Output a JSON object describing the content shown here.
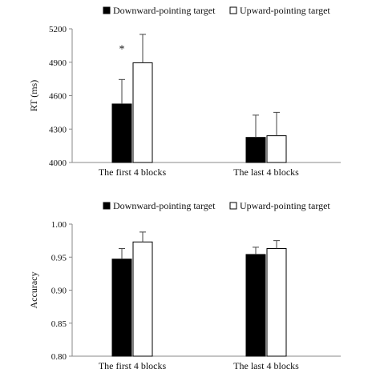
{
  "chart_data": [
    {
      "type": "bar",
      "categories": [
        "The first 4 blocks",
        "The last 4 blocks"
      ],
      "series": [
        {
          "name": "Downward-pointing target",
          "values": [
            4525,
            4225
          ],
          "errors": [
            220,
            200
          ],
          "color": "#000000"
        },
        {
          "name": "Upward-pointing target",
          "values": [
            4895,
            4240
          ],
          "errors": [
            255,
            210
          ],
          "color": "#ffffff"
        }
      ],
      "ylabel": "RT (ms)",
      "ylim": [
        4000,
        5200
      ],
      "yticks": [
        4000,
        4300,
        4600,
        4900,
        5200
      ],
      "ytick_labels": [
        "4000",
        "4300",
        "4600",
        "4900",
        "5200"
      ],
      "annotations": [
        {
          "text": "*",
          "category": 0
        }
      ],
      "legend": "top",
      "grid": false
    },
    {
      "type": "bar",
      "categories": [
        "The first 4 blocks",
        "The last 4 blocks"
      ],
      "series": [
        {
          "name": "Downward-pointing target",
          "values": [
            0.947,
            0.954
          ],
          "errors": [
            0.016,
            0.011
          ],
          "color": "#000000"
        },
        {
          "name": "Upward-pointing target",
          "values": [
            0.973,
            0.963
          ],
          "errors": [
            0.015,
            0.012
          ],
          "color": "#ffffff"
        }
      ],
      "ylabel": "Accuracy",
      "ylim": [
        0.8,
        1.0
      ],
      "yticks": [
        0.8,
        0.85,
        0.9,
        0.95,
        1.0
      ],
      "ytick_labels": [
        "0.80",
        "0.85",
        "0.90",
        "0.95",
        "1.00"
      ],
      "annotations": [],
      "legend": "top",
      "grid": false
    }
  ]
}
